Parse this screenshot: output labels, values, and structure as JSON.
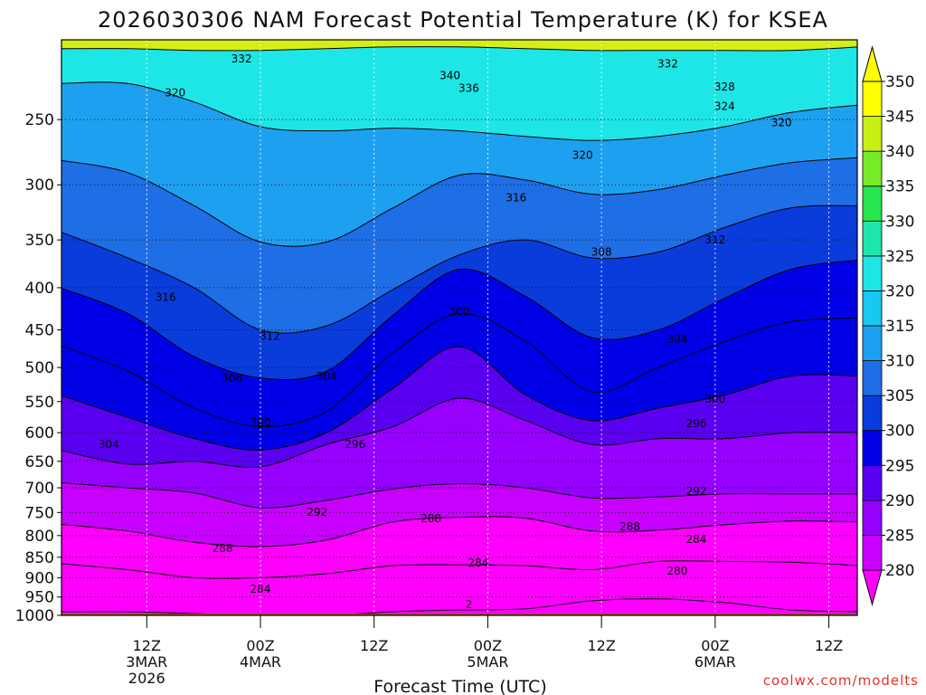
{
  "chart_data": {
    "type": "heatmap",
    "title": "2026030306 NAM Forecast Potential Temperature (K) for KSEA",
    "xlabel": "Forecast Time (UTC)",
    "ylabel": "",
    "credit": "coolwx.com/modelts",
    "y_scale": "log-pressure",
    "ylim": [
      1000,
      200
    ],
    "yticks": [
      "250",
      "300",
      "350",
      "400",
      "450",
      "500",
      "550",
      "600",
      "650",
      "700",
      "750",
      "800",
      "850",
      "900",
      "950",
      "1000"
    ],
    "xlim_hours": [
      -3,
      81
    ],
    "xticks": [
      {
        "hour": 6,
        "label": "12Z",
        "sub": "3MAR",
        "sub2": "2026"
      },
      {
        "hour": 18,
        "label": "00Z",
        "sub": "4MAR",
        "sub2": ""
      },
      {
        "hour": 30,
        "label": "12Z",
        "sub": "",
        "sub2": ""
      },
      {
        "hour": 42,
        "label": "00Z",
        "sub": "5MAR",
        "sub2": ""
      },
      {
        "hour": 54,
        "label": "12Z",
        "sub": "",
        "sub2": ""
      },
      {
        "hour": 66,
        "label": "00Z",
        "sub": "6MAR",
        "sub2": ""
      },
      {
        "hour": 78,
        "label": "12Z",
        "sub": "",
        "sub2": ""
      }
    ],
    "grid": true,
    "colorbar": {
      "levels": [
        "280",
        "285",
        "290",
        "295",
        "300",
        "305",
        "310",
        "315",
        "320",
        "325",
        "330",
        "335",
        "340",
        "345",
        "350"
      ],
      "colors": [
        "#ff00ff",
        "#c800ff",
        "#9600ff",
        "#5a00f0",
        "#0000e6",
        "#0a3cdc",
        "#1e6ee6",
        "#1ea0f0",
        "#19c8f0",
        "#1ee6e6",
        "#1ee6aa",
        "#28e650",
        "#78eb28",
        "#c8f014",
        "#ffff00"
      ]
    },
    "series": [
      {
        "level": 332,
        "p": [
          205,
          205,
          206,
          206,
          205,
          204,
          204,
          205,
          206,
          206,
          206,
          206,
          204
        ]
      },
      {
        "level": 320,
        "p": [
          226,
          226,
          238,
          255,
          258,
          256,
          258,
          262,
          265,
          262,
          255,
          245,
          240
        ]
      },
      {
        "level": 316,
        "p": [
          280,
          290,
          318,
          352,
          352,
          320,
          292,
          296,
          308,
          304,
          292,
          282,
          278
        ]
      },
      {
        "level": 312,
        "p": [
          342,
          368,
          400,
          450,
          445,
          402,
          365,
          350,
          368,
          362,
          338,
          320,
          318
        ]
      },
      {
        "level": 308,
        "p": [
          400,
          430,
          485,
          515,
          505,
          432,
          380,
          410,
          460,
          450,
          412,
          380,
          370
        ]
      },
      {
        "level": 304,
        "p": [
          470,
          505,
          560,
          590,
          565,
          480,
          430,
          465,
          535,
          500,
          465,
          440,
          435
        ]
      },
      {
        "level": 300,
        "p": [
          540,
          575,
          610,
          630,
          600,
          530,
          472,
          540,
          580,
          560,
          540,
          512,
          512
        ]
      },
      {
        "level": 296,
        "p": [
          630,
          655,
          650,
          660,
          620,
          590,
          545,
          580,
          620,
          610,
          610,
          600,
          600
        ]
      },
      {
        "level": 292,
        "p": [
          690,
          700,
          710,
          740,
          725,
          702,
          692,
          700,
          720,
          718,
          712,
          712,
          712
        ]
      },
      {
        "level": 288,
        "p": [
          775,
          790,
          815,
          825,
          810,
          770,
          760,
          762,
          790,
          788,
          776,
          768,
          770
        ]
      },
      {
        "level": 284,
        "p": [
          865,
          880,
          900,
          900,
          890,
          870,
          868,
          870,
          880,
          860,
          860,
          862,
          870
        ]
      },
      {
        "level": 280,
        "p": [
          990,
          990,
          995,
          1000,
          1000,
          990,
          985,
          982,
          960,
          955,
          965,
          985,
          990
        ]
      }
    ],
    "contour_labels": [
      {
        "text": "332",
        "h": 16,
        "p": 211
      },
      {
        "text": "340",
        "h": 38,
        "p": 221
      },
      {
        "text": "336",
        "h": 40,
        "p": 229
      },
      {
        "text": "320",
        "h": 9,
        "p": 232
      },
      {
        "text": "332",
        "h": 61,
        "p": 214
      },
      {
        "text": "328",
        "h": 67,
        "p": 228
      },
      {
        "text": "324",
        "h": 67,
        "p": 241
      },
      {
        "text": "320",
        "h": 73,
        "p": 252
      },
      {
        "text": "320",
        "h": 52,
        "p": 276
      },
      {
        "text": "316",
        "h": 45,
        "p": 311
      },
      {
        "text": "308",
        "h": 54,
        "p": 362
      },
      {
        "text": "312",
        "h": 66,
        "p": 350
      },
      {
        "text": "316",
        "h": 8,
        "p": 411
      },
      {
        "text": "312",
        "h": 19,
        "p": 458
      },
      {
        "text": "300",
        "h": 39,
        "p": 428
      },
      {
        "text": "304",
        "h": 62,
        "p": 462
      },
      {
        "text": "308",
        "h": 15,
        "p": 515
      },
      {
        "text": "304",
        "h": 25,
        "p": 513
      },
      {
        "text": "300",
        "h": 66,
        "p": 546
      },
      {
        "text": "300",
        "h": 18,
        "p": 583
      },
      {
        "text": "296",
        "h": 64,
        "p": 585
      },
      {
        "text": "296",
        "h": 28,
        "p": 620
      },
      {
        "text": "304",
        "h": 2,
        "p": 620
      },
      {
        "text": "292",
        "h": 64,
        "p": 707
      },
      {
        "text": "292",
        "h": 24,
        "p": 749
      },
      {
        "text": "288",
        "h": 36,
        "p": 763
      },
      {
        "text": "288",
        "h": 57,
        "p": 780
      },
      {
        "text": "284",
        "h": 64,
        "p": 809
      },
      {
        "text": "288",
        "h": 14,
        "p": 829
      },
      {
        "text": "284",
        "h": 41,
        "p": 863
      },
      {
        "text": "280",
        "h": 62,
        "p": 883
      },
      {
        "text": "284",
        "h": 18,
        "p": 929
      },
      {
        "text": "2",
        "h": 40,
        "p": 970
      }
    ]
  }
}
